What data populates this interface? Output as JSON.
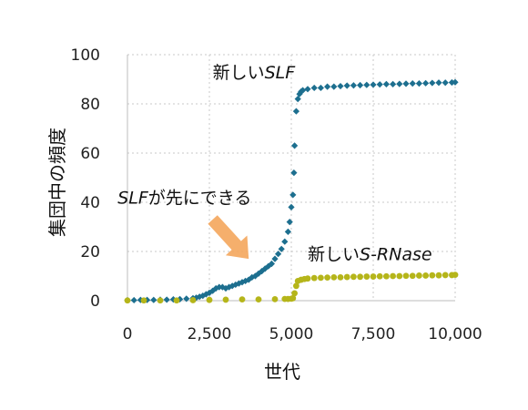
{
  "chart_data": {
    "type": "scatter",
    "xlabel": "世代",
    "ylabel": "集団中の頻度",
    "xlim": [
      0,
      10000
    ],
    "ylim": [
      0,
      100
    ],
    "x_ticks": [
      0,
      2500,
      5000,
      7500,
      10000
    ],
    "x_tick_labels": [
      "0",
      "2,500",
      "5,000",
      "7,500",
      "10,000"
    ],
    "y_ticks": [
      0,
      20,
      40,
      60,
      80,
      100
    ],
    "y_tick_labels": [
      "0",
      "20",
      "40",
      "60",
      "80",
      "100"
    ],
    "grid": "dotted",
    "colors": {
      "blue": "#1d6f8f",
      "yellow": "#b5b51a",
      "arrow": "#f4a65c"
    },
    "annotations": [
      {
        "id": "slf-new",
        "parts": [
          {
            "text": "新しい",
            "italic": false
          },
          {
            "text": "SLF",
            "italic": true
          }
        ],
        "x": 2600,
        "y": 93
      },
      {
        "id": "slf-appears",
        "parts": [
          {
            "text": "SLF",
            "italic": true
          },
          {
            "text": "が先にできる",
            "italic": false
          }
        ],
        "x": -300,
        "y": 42
      },
      {
        "id": "srnase-new",
        "parts": [
          {
            "text": "新しい",
            "italic": false
          },
          {
            "text": "S-RNase",
            "italic": true
          }
        ],
        "x": 5500,
        "y": 19
      }
    ],
    "arrow": {
      "from": [
        2600,
        33
      ],
      "to": [
        3700,
        17
      ]
    },
    "series": [
      {
        "marker": "diamond",
        "color": "#1d6f8f",
        "points": [
          [
            0,
            0.2
          ],
          [
            200,
            0.2
          ],
          [
            400,
            0.3
          ],
          [
            600,
            0.3
          ],
          [
            800,
            0.3
          ],
          [
            1000,
            0.4
          ],
          [
            1200,
            0.4
          ],
          [
            1400,
            0.5
          ],
          [
            1600,
            0.6
          ],
          [
            1800,
            0.8
          ],
          [
            2000,
            1
          ],
          [
            2100,
            1.2
          ],
          [
            2200,
            1.6
          ],
          [
            2300,
            2
          ],
          [
            2400,
            2.6
          ],
          [
            2500,
            3.2
          ],
          [
            2600,
            4
          ],
          [
            2700,
            5
          ],
          [
            2800,
            5.5
          ],
          [
            2900,
            5.5
          ],
          [
            3000,
            5
          ],
          [
            3100,
            5.5
          ],
          [
            3200,
            6
          ],
          [
            3300,
            6.5
          ],
          [
            3400,
            7
          ],
          [
            3500,
            7.5
          ],
          [
            3600,
            8
          ],
          [
            3700,
            8.5
          ],
          [
            3800,
            9.5
          ],
          [
            3900,
            10
          ],
          [
            4000,
            11
          ],
          [
            4100,
            12
          ],
          [
            4200,
            13
          ],
          [
            4300,
            14
          ],
          [
            4400,
            15
          ],
          [
            4500,
            17
          ],
          [
            4600,
            19
          ],
          [
            4700,
            21
          ],
          [
            4800,
            24
          ],
          [
            4900,
            28
          ],
          [
            4950,
            32
          ],
          [
            5000,
            38
          ],
          [
            5050,
            43
          ],
          [
            5080,
            52
          ],
          [
            5100,
            63
          ],
          [
            5150,
            77
          ],
          [
            5200,
            82
          ],
          [
            5250,
            84
          ],
          [
            5300,
            85
          ],
          [
            5350,
            85.5
          ],
          [
            5500,
            86
          ],
          [
            5700,
            86.5
          ],
          [
            5900,
            86.5
          ],
          [
            6100,
            87
          ],
          [
            6300,
            87
          ],
          [
            6500,
            87.2
          ],
          [
            6700,
            87.4
          ],
          [
            6900,
            87.5
          ],
          [
            7100,
            87.6
          ],
          [
            7300,
            87.7
          ],
          [
            7500,
            87.8
          ],
          [
            7700,
            87.9
          ],
          [
            7900,
            88
          ],
          [
            8100,
            88
          ],
          [
            8300,
            88.1
          ],
          [
            8500,
            88.2
          ],
          [
            8700,
            88.3
          ],
          [
            8900,
            88.3
          ],
          [
            9100,
            88.4
          ],
          [
            9300,
            88.5
          ],
          [
            9500,
            88.6
          ],
          [
            9700,
            88.6
          ],
          [
            9900,
            88.7
          ],
          [
            10000,
            88.8
          ]
        ]
      },
      {
        "marker": "dot",
        "color": "#b5b51a",
        "points": [
          [
            0,
            0.1
          ],
          [
            500,
            0.1
          ],
          [
            1000,
            0.1
          ],
          [
            1500,
            0.1
          ],
          [
            2000,
            0.2
          ],
          [
            2500,
            0.3
          ],
          [
            3000,
            0.4
          ],
          [
            3500,
            0.5
          ],
          [
            4000,
            0.5
          ],
          [
            4500,
            0.6
          ],
          [
            4800,
            0.7
          ],
          [
            4900,
            0.7
          ],
          [
            5000,
            0.8
          ],
          [
            5050,
            1
          ],
          [
            5100,
            3
          ],
          [
            5150,
            6
          ],
          [
            5200,
            8
          ],
          [
            5300,
            8.5
          ],
          [
            5400,
            8.8
          ],
          [
            5500,
            9
          ],
          [
            5700,
            9.2
          ],
          [
            5900,
            9.3
          ],
          [
            6100,
            9.4
          ],
          [
            6300,
            9.5
          ],
          [
            6500,
            9.5
          ],
          [
            6700,
            9.6
          ],
          [
            6900,
            9.7
          ],
          [
            7100,
            9.7
          ],
          [
            7300,
            9.8
          ],
          [
            7500,
            9.8
          ],
          [
            7700,
            9.9
          ],
          [
            7900,
            9.9
          ],
          [
            8100,
            10
          ],
          [
            8300,
            10
          ],
          [
            8500,
            10.1
          ],
          [
            8700,
            10.1
          ],
          [
            8900,
            10.2
          ],
          [
            9100,
            10.2
          ],
          [
            9300,
            10.3
          ],
          [
            9500,
            10.3
          ],
          [
            9700,
            10.4
          ],
          [
            9900,
            10.4
          ],
          [
            10000,
            10.5
          ]
        ]
      }
    ]
  }
}
